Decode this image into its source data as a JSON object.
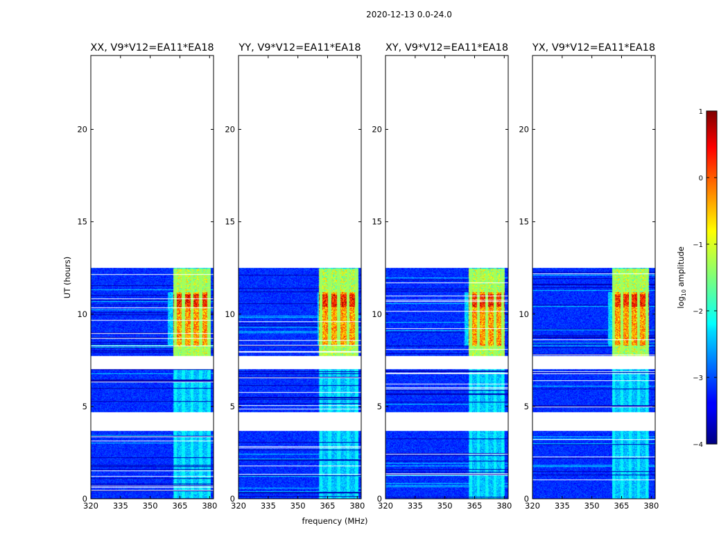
{
  "figure": {
    "suptitle": "2020-12-13 0.0-24.0"
  },
  "chart_data": {
    "type": "heatmap",
    "xlabel": "frequency (MHz)",
    "ylabel": "UT (hours)",
    "xlim": [
      320,
      382
    ],
    "ylim": [
      0,
      24
    ],
    "xticks": [
      320,
      335,
      350,
      365,
      380
    ],
    "yticks": [
      0,
      5,
      10,
      15,
      20
    ],
    "data_extent_hours": [
      0.0,
      12.5
    ],
    "gaps_hours": [
      [
        3.7,
        4.7
      ],
      [
        7.05,
        7.75
      ]
    ],
    "panels": [
      {
        "title": "XX, V9*V12=EA11*EA18",
        "band_mhz": [
          361.5,
          380.5
        ],
        "edge_fade": 8
      },
      {
        "title": "YY, V9*V12=EA11*EA18",
        "band_mhz": [
          360.5,
          380.5
        ],
        "edge_fade": 2
      },
      {
        "title": "XY, V9*V12=EA11*EA18",
        "band_mhz": [
          362.0,
          380.0
        ],
        "edge_fade": 6
      },
      {
        "title": "YX, V9*V12=EA11*EA18",
        "band_mhz": [
          360.0,
          378.5
        ],
        "edge_fade": 6
      }
    ],
    "colorbar": {
      "label": "log10 amplitude",
      "label_base": "log",
      "label_sub": "10",
      "label_rest": " amplitude",
      "range": [
        -4,
        1
      ],
      "ticks": [
        "1",
        "0",
        "−1",
        "−2",
        "−3",
        "−4"
      ],
      "tick_values": [
        1,
        0,
        -1,
        -2,
        -3,
        -4
      ],
      "colormap": "jet"
    }
  }
}
